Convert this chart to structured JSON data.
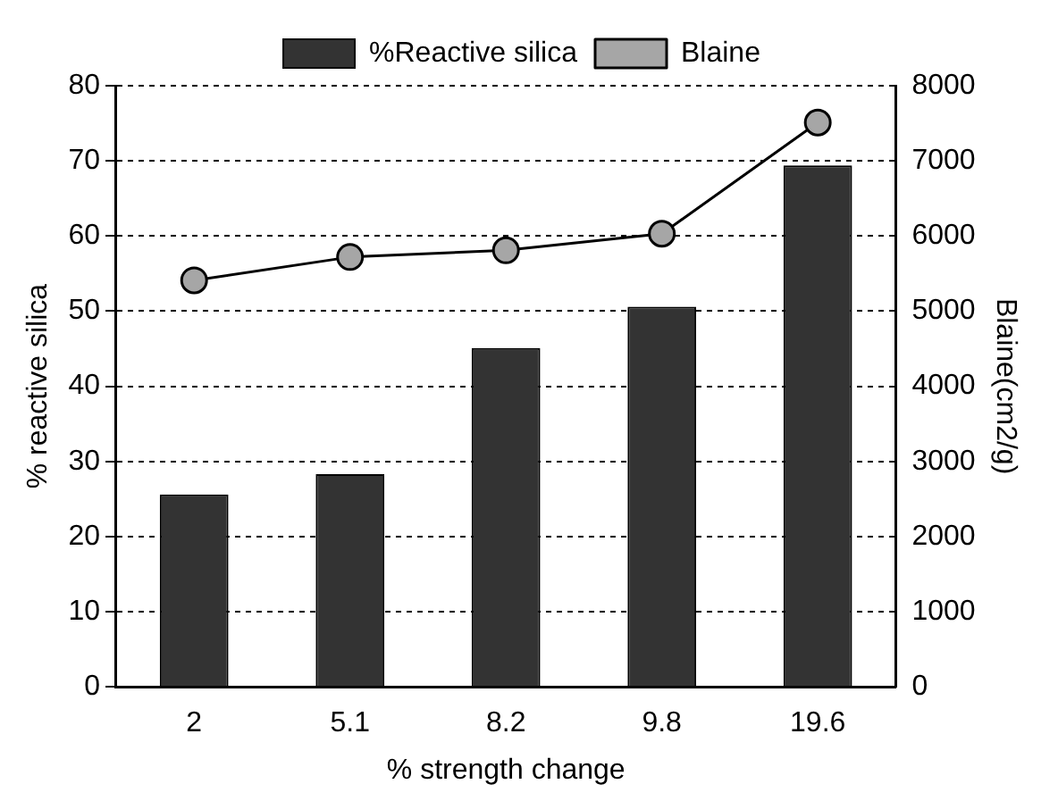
{
  "chart_data": {
    "type": "bar",
    "xlabel": "% strength change",
    "ylabel": "% reactive silica",
    "y2label": "Blaine(cm2/g)",
    "categories": [
      "2",
      "5.1",
      "8.2",
      "9.8",
      "19.6"
    ],
    "series": [
      {
        "name": "%Reactive silica",
        "color": "#333333",
        "values": [
          25.6,
          28.3,
          45.1,
          50.6,
          69.4
        ]
      },
      {
        "name": "Blaine",
        "type": "line",
        "axis": "y2",
        "color": "#a6a6a6",
        "values": [
          5410,
          5720,
          5810,
          6030,
          7510
        ]
      }
    ],
    "ylim": [
      0,
      80
    ],
    "yticks": [
      0,
      10,
      20,
      30,
      40,
      50,
      60,
      70,
      80
    ],
    "y2lim": [
      0,
      8000
    ],
    "y2ticks": [
      0,
      1000,
      2000,
      3000,
      4000,
      5000,
      6000,
      7000,
      8000
    ],
    "grid": "y",
    "legend": "top",
    "marker": "circle",
    "line_style": "solid"
  }
}
